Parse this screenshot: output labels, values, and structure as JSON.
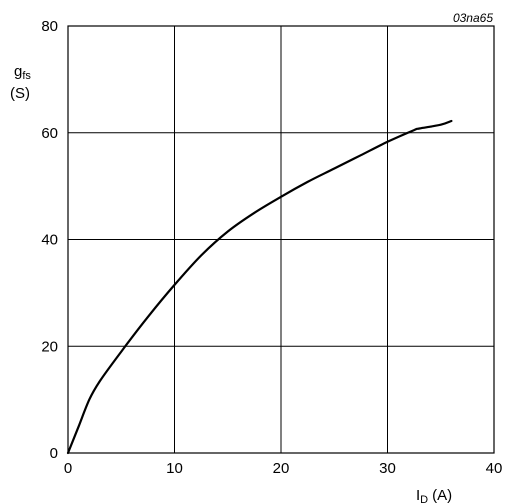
{
  "chart_data": {
    "type": "line",
    "code": "03na65",
    "ylabel_main": "g",
    "ylabel_sub": "fs",
    "ylabel_unit": "(S)",
    "xlabel_main": "I",
    "xlabel_sub": "D",
    "xlabel_unit": "(A)",
    "xlim": [
      0,
      40
    ],
    "ylim": [
      0,
      80
    ],
    "xticks": [
      0,
      10,
      20,
      30,
      40
    ],
    "yticks": [
      0,
      20,
      40,
      60,
      80
    ],
    "grid": true,
    "series": [
      {
        "x": [
          0,
          1,
          2,
          3,
          5,
          7.5,
          10,
          12.5,
          15,
          17.5,
          20,
          22.5,
          25,
          27.5,
          30,
          32.5,
          33,
          35,
          36
        ],
        "y": [
          0,
          5,
          10,
          13.5,
          19,
          25.5,
          31.5,
          37,
          41.5,
          45,
          48,
          50.8,
          53.3,
          55.8,
          58.3,
          60.5,
          60.8,
          61.5,
          62.2
        ]
      }
    ]
  }
}
